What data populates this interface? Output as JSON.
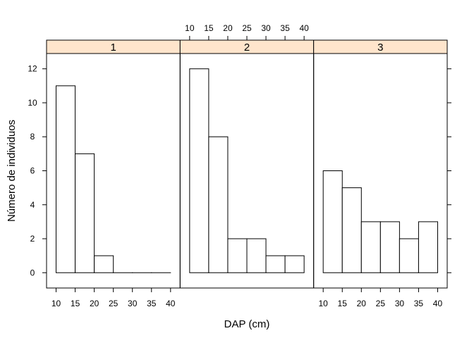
{
  "chart_data": {
    "type": "bar",
    "xlabel": "DAP (cm)",
    "ylabel": "Número de individuos",
    "xlim": [
      7.5,
      42.5
    ],
    "ylim": [
      -0.9,
      12.9
    ],
    "x_ticks": [
      10,
      15,
      20,
      25,
      30,
      35,
      40
    ],
    "y_ticks": [
      0,
      2,
      4,
      6,
      8,
      10,
      12
    ],
    "colors": {
      "strip": "#ffe5cc",
      "bar": "#ffffff",
      "line": "#000000"
    },
    "panels": [
      {
        "name": "1",
        "bins": [
          [
            10,
            15
          ],
          [
            15,
            20
          ],
          [
            20,
            25
          ],
          [
            25,
            30
          ],
          [
            30,
            35
          ],
          [
            35,
            40
          ]
        ],
        "values": [
          11,
          7,
          1,
          0,
          0,
          0
        ]
      },
      {
        "name": "2",
        "bins": [
          [
            10,
            15
          ],
          [
            15,
            20
          ],
          [
            20,
            25
          ],
          [
            25,
            30
          ],
          [
            30,
            35
          ],
          [
            35,
            40
          ]
        ],
        "values": [
          12,
          8,
          2,
          2,
          1,
          1
        ]
      },
      {
        "name": "3",
        "bins": [
          [
            10,
            15
          ],
          [
            15,
            20
          ],
          [
            20,
            25
          ],
          [
            25,
            30
          ],
          [
            30,
            35
          ],
          [
            35,
            40
          ]
        ],
        "values": [
          6,
          5,
          3,
          3,
          2,
          3
        ]
      }
    ]
  }
}
